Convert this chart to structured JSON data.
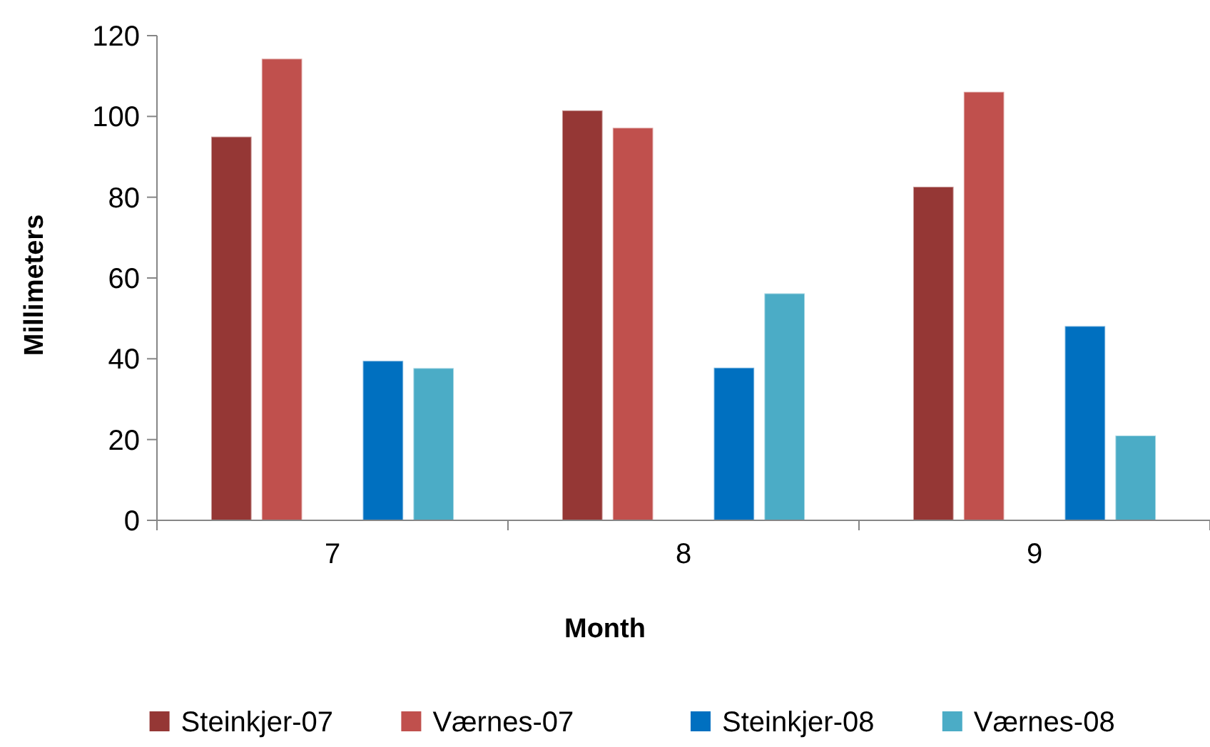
{
  "chart_data": {
    "type": "bar",
    "xlabel": "Month",
    "ylabel": "Millimeters",
    "categories": [
      "7",
      "8",
      "9"
    ],
    "series": [
      {
        "name": "Steinkjer-07",
        "color": "#953735",
        "values": [
          95,
          101.5,
          82.6
        ]
      },
      {
        "name": "Værnes-07",
        "color": "#c0504d",
        "values": [
          114.3,
          97.2,
          106.1
        ]
      },
      {
        "name": "Steinkjer-08",
        "color": "#0070c0",
        "values": [
          39.5,
          37.8,
          48.1
        ]
      },
      {
        "name": "Værnes-08",
        "color": "#4bacc6",
        "values": [
          37.7,
          56.2,
          21
        ]
      }
    ],
    "ylim": [
      0,
      120
    ],
    "yticks": [
      0,
      20,
      40,
      60,
      80,
      100,
      120
    ],
    "grid": false,
    "legend": "bottom"
  }
}
